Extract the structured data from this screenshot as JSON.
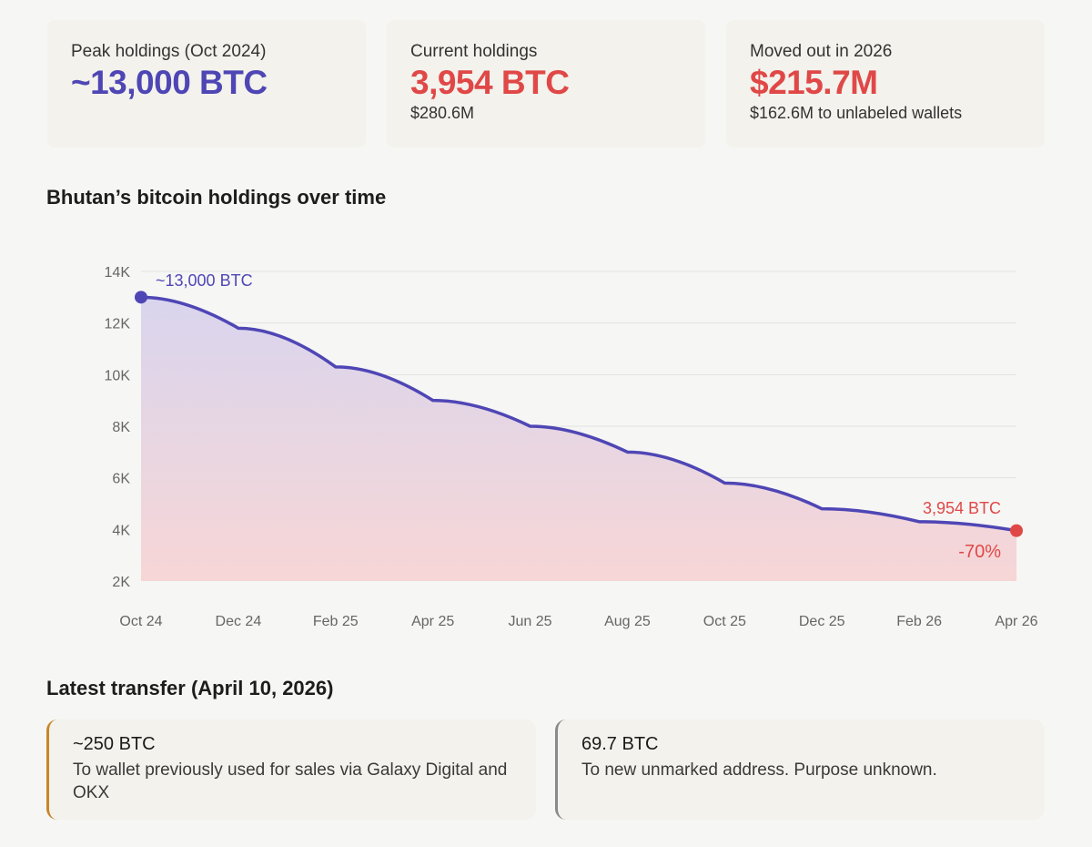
{
  "stats": [
    {
      "label": "Peak holdings (Oct 2024)",
      "value": "~13,000 BTC",
      "sub": "",
      "color": "#4f46b5"
    },
    {
      "label": "Current holdings",
      "value": "3,954 BTC",
      "sub": "$280.6M",
      "color": "#e04848"
    },
    {
      "label": "Moved out in 2026",
      "value": "$215.7M",
      "sub": "$162.6M to unlabeled wallets",
      "color": "#e04848"
    }
  ],
  "chart_title": "Bhutan’s bitcoin holdings over time",
  "chart_data": {
    "type": "area",
    "title": "Bhutan’s bitcoin holdings over time",
    "x": [
      "Oct 24",
      "Dec 24",
      "Feb 25",
      "Apr 25",
      "Jun 25",
      "Aug 25",
      "Oct 25",
      "Dec 25",
      "Feb 26",
      "Apr 26"
    ],
    "values": [
      13000,
      11800,
      10300,
      9000,
      8000,
      7000,
      5800,
      4800,
      4300,
      3954
    ],
    "ylim": [
      2000,
      14000
    ],
    "yticks": [
      "2K",
      "4K",
      "6K",
      "8K",
      "10K",
      "12K",
      "14K"
    ],
    "grid": true,
    "annotations": {
      "start": "~13,000 BTC",
      "end": "3,954 BTC",
      "change": "-70%"
    },
    "colors": {
      "line": "#4f46b5",
      "end": "#e04848",
      "fill_top": "#d9d5ee",
      "fill_bottom": "#f7d6d6"
    }
  },
  "transfer_title": "Latest transfer (April 10, 2026)",
  "transfers": [
    {
      "amount": "~250 BTC",
      "desc": "To wallet previously used for sales via Galaxy Digital and OKX",
      "accent": "#c8862a"
    },
    {
      "amount": "69.7 BTC",
      "desc": "To new unmarked address. Purpose unknown.",
      "accent": "#8a8a8a"
    }
  ]
}
